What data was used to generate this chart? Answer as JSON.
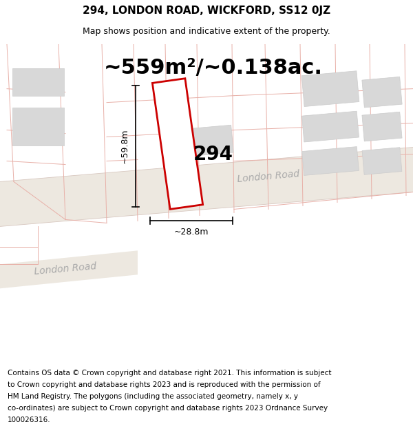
{
  "title": "294, LONDON ROAD, WICKFORD, SS12 0JZ",
  "subtitle": "Map shows position and indicative extent of the property.",
  "area_text": "~559m²/~0.138ac.",
  "label_294": "294",
  "dim_width": "~28.8m",
  "dim_height": "~59.8m",
  "footer_lines": [
    "Contains OS data © Crown copyright and database right 2021. This information is subject",
    "to Crown copyright and database rights 2023 and is reproduced with the permission of",
    "HM Land Registry. The polygons (including the associated geometry, namely x, y",
    "co-ordinates) are subject to Crown copyright and database rights 2023 Ordnance Survey",
    "100026316."
  ],
  "bg_color": "#f8f7f5",
  "road_color": "#ede8e0",
  "road_edge_color": "#d8c8c0",
  "plot_fill": "white",
  "plot_edge": "#cc0000",
  "grey_fill": "#d8d8d8",
  "grey_edge": "#cccccc",
  "pink_line": "#e8b0a8",
  "road_label": "London Road",
  "road_label2": "London Road",
  "title_fontsize": 11,
  "subtitle_fontsize": 9,
  "area_fontsize": 22,
  "label_fontsize": 20,
  "dim_fontsize": 9,
  "footer_fontsize": 7.5,
  "road_label_fontsize": 10
}
